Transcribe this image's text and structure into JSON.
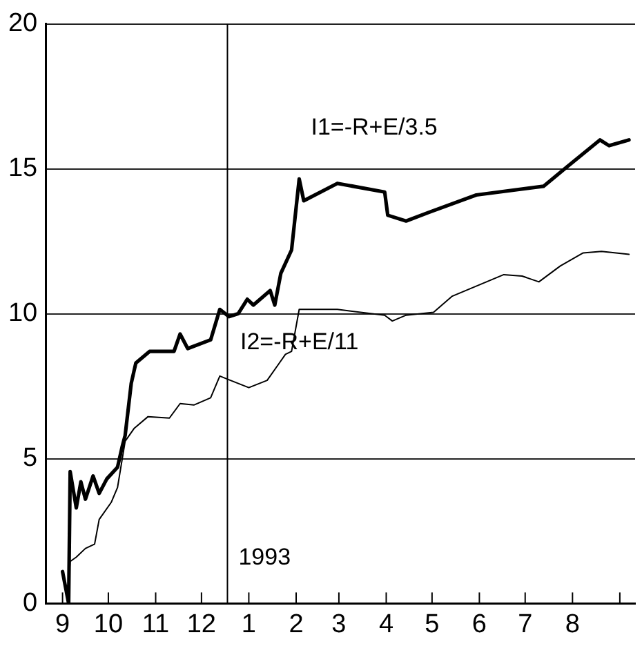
{
  "chart_data": {
    "type": "line",
    "series": [
      {
        "color": "#000000",
        "x": [
          "1992-09-15",
          "1992-09-19",
          "1992-09-20",
          "1992-09-24",
          "1992-09-27",
          "1992-09-30",
          "1992-10-05",
          "1992-10-09",
          "1992-10-14",
          "1992-10-21",
          "1992-10-24",
          "1992-10-26",
          "1992-10-30",
          "1992-11-02",
          "1992-11-11",
          "1992-11-27",
          "1992-12-01",
          "1992-12-06",
          "1992-12-21",
          "1992-12-27",
          "1993-01-02",
          "1993-01-08",
          "1993-01-14",
          "1993-01-18",
          "1993-01-29",
          "1993-02-01",
          "1993-02-05",
          "1993-02-12",
          "1993-02-17",
          "1993-02-20",
          "1993-03-14",
          "1993-04-14",
          "1993-04-16",
          "1993-04-28",
          "1993-05-13",
          "1993-06-13",
          "1993-07-27",
          "1993-08-11",
          "1993-09-02",
          "1993-09-08",
          "1993-09-21"
        ],
        "values": [
          1.1,
          0,
          4.55,
          3.3,
          4.2,
          3.6,
          4.4,
          3.8,
          4.3,
          4.7,
          5.4,
          5.8,
          7.6,
          8.3,
          8.7,
          8.7,
          9.3,
          8.8,
          9.1,
          10.15,
          9.9,
          10.0,
          10.5,
          10.3,
          10.8,
          10.3,
          11.4,
          12.2,
          14.65,
          13.9,
          14.5,
          14.2,
          13.4,
          13.2,
          13.5,
          14.1,
          14.4,
          15.05,
          16.0,
          15.8,
          16.0
        ]
      },
      {
        "color": "#000000",
        "x": [
          "1992-09-15",
          "1992-09-18",
          "1992-09-20",
          "1992-09-24",
          "1992-09-30",
          "1992-10-06",
          "1992-10-09",
          "1992-10-17",
          "1992-10-21",
          "1992-10-26",
          "1992-11-01",
          "1992-11-10",
          "1992-11-24",
          "1992-12-01",
          "1992-12-10",
          "1992-12-21",
          "1992-12-27",
          "1993-01-03",
          "1993-01-15",
          "1993-01-27",
          "1993-02-04",
          "1993-02-08",
          "1993-02-12",
          "1993-02-17",
          "1993-03-14",
          "1993-04-14",
          "1993-04-19",
          "1993-04-28",
          "1993-05-16",
          "1993-05-28",
          "1993-07-01",
          "1993-07-13",
          "1993-07-24",
          "1993-08-07",
          "1993-08-22",
          "1993-09-03",
          "1993-09-21"
        ],
        "values": [
          1.0,
          0.2,
          1.45,
          1.6,
          1.9,
          2.05,
          2.9,
          3.5,
          4.0,
          5.6,
          6.05,
          6.45,
          6.4,
          6.9,
          6.85,
          7.1,
          7.85,
          7.7,
          7.45,
          7.7,
          8.3,
          8.6,
          8.7,
          10.15,
          10.15,
          9.95,
          9.75,
          9.95,
          10.05,
          10.6,
          11.35,
          11.3,
          11.1,
          11.65,
          12.1,
          12.15,
          12.05
        ]
      }
    ],
    "xlim": [
      "1992-09-04",
      "1993-09-25"
    ],
    "xticks": [
      {
        "value": "1992-09-15",
        "label": "9"
      },
      {
        "value": "1992-10-15",
        "label": "10"
      },
      {
        "value": "1992-11-15",
        "label": "11"
      },
      {
        "value": "1992-12-15",
        "label": "12"
      },
      {
        "value": "1993-01-15",
        "label": "1"
      },
      {
        "value": "1993-02-15",
        "label": "2"
      },
      {
        "value": "1993-03-15",
        "label": "3"
      },
      {
        "value": "1993-04-15",
        "label": "4"
      },
      {
        "value": "1993-05-15",
        "label": "5"
      },
      {
        "value": "1993-06-15",
        "label": "6"
      },
      {
        "value": "1993-07-15",
        "label": "7"
      },
      {
        "value": "1993-08-15",
        "label": "8"
      },
      {
        "value": "1993-09-15",
        "label": null
      }
    ],
    "ylim": [
      0,
      20
    ],
    "yticks": [
      0,
      5,
      10,
      15,
      20
    ],
    "grid": "y",
    "ref_lines": [
      {
        "axis": "x",
        "value": "1993-01-01",
        "label": "1993",
        "color": "#000000"
      }
    ],
    "annotations": [
      "I1=-R+E/3.5",
      "I2=-R+E/11"
    ]
  }
}
